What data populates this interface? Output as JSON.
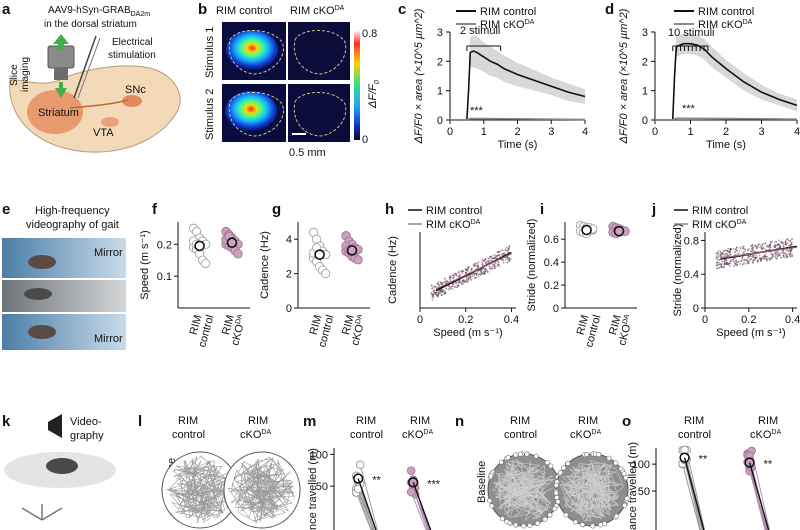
{
  "panels": {
    "a": {
      "label": "a",
      "title_line1": "AAV9-hSyn-GRAB",
      "title_sub": "DA2m",
      "title_line2": "in the dorsal striatum",
      "stim_line1": "Electrical",
      "stim_line2": "stimulation",
      "slice_line1": "Slice",
      "slice_line2": "imaging",
      "striatum": "Striatum",
      "snc": "SNc",
      "vta": "VTA"
    },
    "b": {
      "label": "b",
      "col1": "RIM control",
      "col2_base": "RIM cKO",
      "col2_sup": "DA",
      "row1": "Stimulus 1",
      "row2": "Stimulus 2",
      "scale_max": "0.8",
      "scale_min": "0",
      "scale_label": "ΔF/F",
      "scale_sub": "0",
      "scalebar": "0.5 mm"
    },
    "c": {
      "label": "c",
      "annotation": "2 stimuli",
      "sig": "***"
    },
    "d": {
      "label": "d",
      "annotation": "10 stimuli",
      "sig": "***"
    },
    "e": {
      "label": "e",
      "title_line1": "High-frequency",
      "title_line2": "videography of gait",
      "mirror_top": "Mirror",
      "mirror_bottom": "Mirror"
    },
    "f": {
      "label": "f"
    },
    "g": {
      "label": "g"
    },
    "h": {
      "label": "h"
    },
    "i": {
      "label": "i"
    },
    "j": {
      "label": "j"
    },
    "k": {
      "label": "k",
      "video_line1": "Video-",
      "video_line2": "graphy"
    },
    "l": {
      "label": "l",
      "col1_line1": "RIM",
      "col1_line2": "control",
      "col2_line1": "RIM",
      "col2_base": "cKO",
      "col2_sup": "DA",
      "row": "Baseline"
    },
    "m": {
      "label": "m",
      "col1_line1": "RIM",
      "col1_line2": "control",
      "col2_line1": "RIM",
      "col2_base": "cKO",
      "col2_sup": "DA",
      "ylabel": "nce travelled (m)",
      "sig1": "**",
      "sig2": "***",
      "y100": "100",
      "y50": "50"
    },
    "n": {
      "label": "n",
      "col1_line1": "RIM",
      "col1_line2": "control",
      "col2_line1": "RIM",
      "col2_base": "cKO",
      "col2_sup": "DA",
      "row": "Baseline"
    },
    "o": {
      "label": "o",
      "col1_line1": "RIM",
      "col1_line2": "control",
      "col2_line1": "RIM",
      "col2_base": "cKO",
      "col2_sup": "DA",
      "ylabel": "ance travelled (m)",
      "sig1": "**",
      "sig2": "**",
      "y100": "100",
      "y50": "50"
    }
  },
  "legend": {
    "control": "RIM control",
    "cko_base": "RIM cKO",
    "cko_sup": "DA"
  },
  "colors": {
    "control": "#111111",
    "cko": "#8a8a8a",
    "cko_dot": "#b07a9a",
    "band": "#d4d4d4"
  },
  "chart_data": [
    {
      "id": "c",
      "type": "line",
      "title": "",
      "xlabel": "Time (s)",
      "ylabel": "ΔF/F0 × area (×10^5 µm^2)",
      "xlim": [
        0,
        4
      ],
      "ylim": [
        0,
        3
      ],
      "xticks": [
        0,
        1,
        2,
        3,
        4
      ],
      "yticks": [
        0,
        1,
        2,
        3
      ],
      "series": [
        {
          "name": "RIM control",
          "x": [
            0,
            0.5,
            0.55,
            0.6,
            0.7,
            0.8,
            1.0,
            1.2,
            1.4,
            1.6,
            2.0,
            2.5,
            3.0,
            3.5,
            4.0
          ],
          "y": [
            0,
            0,
            1.0,
            2.3,
            2.35,
            2.3,
            2.15,
            2.0,
            1.9,
            1.75,
            1.55,
            1.35,
            1.15,
            0.95,
            0.8
          ],
          "sem": [
            0,
            0,
            0.3,
            0.5,
            0.55,
            0.55,
            0.5,
            0.5,
            0.45,
            0.45,
            0.4,
            0.35,
            0.3,
            0.3,
            0.25
          ]
        },
        {
          "name": "RIM cKODA",
          "x": [
            0,
            0.5,
            0.6,
            1,
            2,
            3,
            4
          ],
          "y": [
            0,
            0,
            0.05,
            0.05,
            0.04,
            0.03,
            0.02
          ],
          "sem": [
            0,
            0,
            0.02,
            0.02,
            0.02,
            0.02,
            0.02
          ]
        }
      ]
    },
    {
      "id": "d",
      "type": "line",
      "title": "",
      "xlabel": "Time (s)",
      "ylabel": "ΔF/F0 × area (×10^5 µm^2)",
      "xlim": [
        0,
        4
      ],
      "ylim": [
        0,
        3
      ],
      "xticks": [
        0,
        1,
        2,
        3,
        4
      ],
      "yticks": [
        0,
        1,
        2,
        3
      ],
      "series": [
        {
          "name": "RIM control",
          "x": [
            0,
            0.5,
            0.55,
            0.6,
            0.8,
            1.0,
            1.2,
            1.4,
            1.6,
            2.0,
            2.5,
            3.0,
            3.5,
            4.0
          ],
          "y": [
            0,
            0,
            1.5,
            2.5,
            2.6,
            2.6,
            2.55,
            2.4,
            2.15,
            1.75,
            1.3,
            0.95,
            0.7,
            0.5
          ],
          "sem": [
            0,
            0,
            0.3,
            0.35,
            0.35,
            0.35,
            0.35,
            0.35,
            0.35,
            0.3,
            0.3,
            0.25,
            0.2,
            0.2
          ]
        },
        {
          "name": "RIM cKODA",
          "x": [
            0,
            0.5,
            0.6,
            1,
            2,
            3,
            4
          ],
          "y": [
            0,
            0,
            0.06,
            0.06,
            0.05,
            0.04,
            0.03
          ],
          "sem": [
            0,
            0,
            0.02,
            0.02,
            0.02,
            0.02,
            0.02
          ]
        }
      ]
    },
    {
      "id": "f",
      "type": "scatter",
      "ylabel": "Speed (m s⁻¹)",
      "ylim": [
        0,
        0.27
      ],
      "yticks": [
        0.1,
        0.2
      ],
      "categories": [
        "RIM control",
        "RIM cKODA"
      ],
      "means": [
        0.195,
        0.205
      ],
      "sems": [
        0.012,
        0.01
      ],
      "points": [
        [
          0.25,
          0.24,
          0.22,
          0.21,
          0.2,
          0.19,
          0.185,
          0.17,
          0.15,
          0.14,
          0.21,
          0.2
        ],
        [
          0.24,
          0.23,
          0.22,
          0.21,
          0.2,
          0.2,
          0.195,
          0.19,
          0.18,
          0.17,
          0.215,
          0.225
        ]
      ]
    },
    {
      "id": "g",
      "type": "scatter",
      "ylabel": "Cadence (Hz)",
      "ylim": [
        0,
        5
      ],
      "yticks": [
        0,
        2,
        4
      ],
      "categories": [
        "RIM control",
        "RIM cKODA"
      ],
      "means": [
        3.1,
        3.35
      ],
      "sems": [
        0.25,
        0.2
      ],
      "points": [
        [
          4.4,
          4.0,
          3.6,
          3.3,
          3.1,
          2.9,
          2.7,
          2.4,
          2.2,
          2.0,
          3.2,
          3.5
        ],
        [
          4.2,
          3.9,
          3.7,
          3.5,
          3.4,
          3.3,
          3.2,
          3.0,
          2.9,
          2.8,
          3.6,
          3.4
        ]
      ]
    },
    {
      "id": "h",
      "type": "scatter",
      "xlabel": "Speed (m s⁻¹)",
      "ylabel": "Cadence (Hz)",
      "xlim": [
        0,
        0.42
      ],
      "ylim": [
        0,
        7
      ],
      "xticks": [
        0,
        0.2,
        0.4
      ],
      "xticklabels": [
        "0",
        "0.2",
        "0.4"
      ],
      "fit": {
        "control": [
          [
            0.07,
            1.6
          ],
          [
            0.4,
            5.1
          ]
        ],
        "cko": [
          [
            0.07,
            1.75
          ],
          [
            0.4,
            5.0
          ]
        ]
      }
    },
    {
      "id": "i",
      "type": "scatter",
      "ylabel": "Stride (normalized)",
      "ylim": [
        0,
        0.75
      ],
      "yticks": [
        0,
        0.2,
        0.4,
        0.6
      ],
      "categories": [
        "RIM control",
        "RIM cKODA"
      ],
      "means": [
        0.68,
        0.67
      ],
      "sems": [
        0.015,
        0.015
      ],
      "points": [
        [
          0.72,
          0.71,
          0.7,
          0.69,
          0.68,
          0.67,
          0.66,
          0.65,
          0.7,
          0.69
        ],
        [
          0.71,
          0.7,
          0.69,
          0.68,
          0.67,
          0.66,
          0.65,
          0.66,
          0.68,
          0.67
        ]
      ]
    },
    {
      "id": "j",
      "type": "scatter",
      "xlabel": "Speed (m s⁻¹)",
      "ylabel": "Stride (normalized)",
      "xlim": [
        0,
        0.42
      ],
      "ylim": [
        0,
        0.9
      ],
      "xticks": [
        0,
        0.2,
        0.4
      ],
      "xticklabels": [
        "0",
        "0.2",
        "0.4"
      ],
      "yticks": [
        0,
        0.4,
        0.8
      ],
      "fit": {
        "control": [
          [
            0.07,
            0.58
          ],
          [
            0.42,
            0.73
          ]
        ],
        "cko": [
          [
            0.07,
            0.59
          ],
          [
            0.42,
            0.72
          ]
        ]
      }
    },
    {
      "id": "m",
      "type": "scatter",
      "ylabel": "Distance travelled (m)",
      "ylim": [
        0,
        110
      ],
      "yticks": [
        50,
        100
      ],
      "means": [
        62,
        56
      ],
      "sems": [
        7,
        6
      ],
      "sig": [
        "**",
        "***"
      ]
    },
    {
      "id": "o",
      "type": "scatter",
      "ylabel": "Distance travelled (m)",
      "ylim": [
        0,
        130
      ],
      "yticks": [
        50,
        100
      ],
      "means": [
        112,
        103
      ],
      "sems": [
        8,
        6
      ],
      "sig": [
        "**",
        "**"
      ]
    }
  ]
}
